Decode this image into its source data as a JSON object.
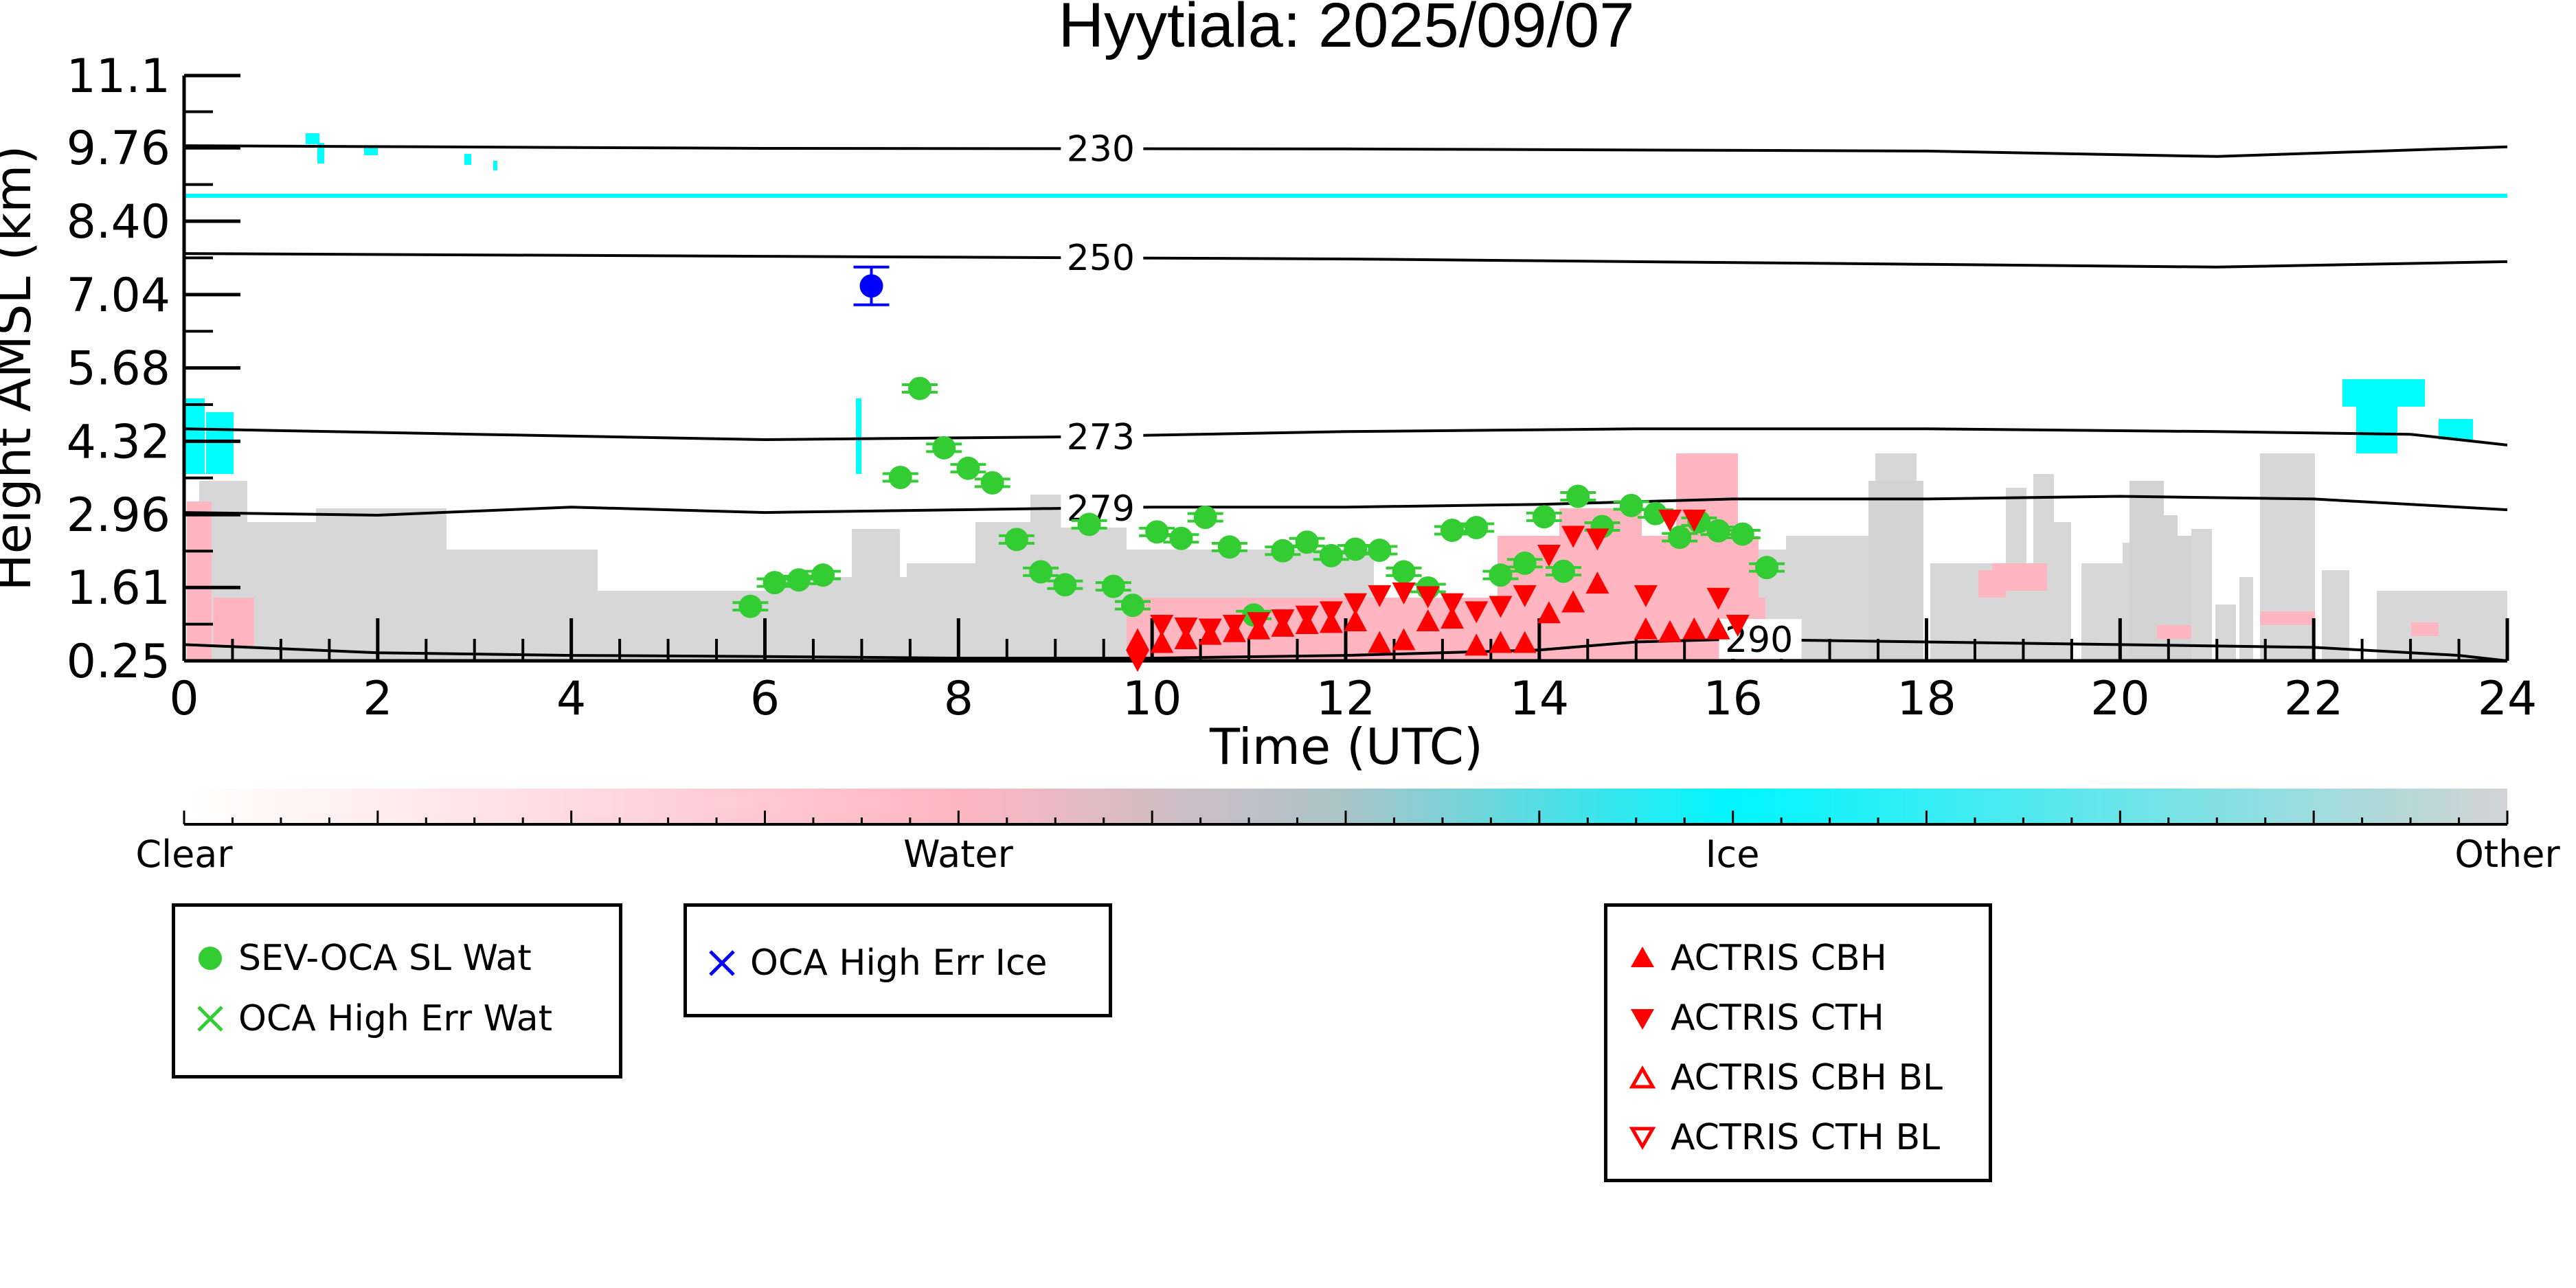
{
  "chart_data": {
    "type": "scatter",
    "title": "Hyytiala: 2025/09/07",
    "xlabel": "Time (UTC)",
    "ylabel": "Height AMSL (km)",
    "xlim": [
      0,
      24
    ],
    "ylim": [
      0.25,
      11.1
    ],
    "x_ticks": [
      "0",
      "2",
      "4",
      "6",
      "8",
      "10",
      "12",
      "14",
      "16",
      "18",
      "20",
      "22",
      "24"
    ],
    "y_ticks": [
      "0.25",
      "1.61",
      "2.96",
      "4.32",
      "5.68",
      "7.04",
      "8.40",
      "9.76",
      "11.1"
    ],
    "colorbar": {
      "labels": [
        "Clear",
        "Water",
        "Ice",
        "Other"
      ],
      "colors": [
        "#ffffff",
        "#ffb6c1",
        "#00ffff",
        "#d3d3d3"
      ]
    },
    "temperature_contours": [
      {
        "label": "230",
        "x": [
          0,
          6,
          12,
          18,
          21,
          24
        ],
        "y": [
          9.8,
          9.75,
          9.74,
          9.7,
          9.6,
          9.78
        ]
      },
      {
        "label": "250",
        "x": [
          0,
          6,
          12,
          18,
          21,
          24
        ],
        "y": [
          7.8,
          7.75,
          7.7,
          7.6,
          7.55,
          7.65
        ]
      },
      {
        "label": "273",
        "x": [
          0,
          3,
          6,
          9,
          12,
          15,
          18,
          21,
          23,
          24
        ],
        "y": [
          4.55,
          4.45,
          4.35,
          4.4,
          4.5,
          4.55,
          4.55,
          4.5,
          4.45,
          4.25
        ]
      },
      {
        "label": "279",
        "x": [
          0,
          2,
          4,
          6,
          8,
          10,
          12,
          14,
          16,
          18,
          20,
          22,
          24
        ],
        "y": [
          3.0,
          2.95,
          3.1,
          3.0,
          3.05,
          3.1,
          3.1,
          3.15,
          3.25,
          3.25,
          3.3,
          3.25,
          3.05
        ]
      },
      {
        "label": "290",
        "x": [
          0,
          2,
          4,
          6,
          8,
          10,
          12,
          14,
          15,
          16,
          18,
          20,
          22,
          23.5,
          24
        ],
        "y": [
          0.55,
          0.4,
          0.35,
          0.33,
          0.3,
          0.3,
          0.35,
          0.45,
          0.6,
          0.65,
          0.6,
          0.55,
          0.5,
          0.35,
          0.25
        ]
      }
    ],
    "series": [
      {
        "name": "SEV-OCA SL Wat",
        "marker": "filled-circle",
        "color": "#33cc33",
        "x": [
          5.85,
          6.1,
          6.35,
          6.6,
          7.4,
          7.6,
          7.85,
          8.1,
          8.35,
          8.6,
          8.85,
          9.1,
          9.35,
          9.6,
          9.8,
          10.05,
          10.3,
          10.55,
          10.8,
          11.05,
          11.35,
          11.6,
          11.85,
          12.1,
          12.35,
          12.6,
          12.85,
          13.1,
          13.35,
          13.6,
          13.85,
          14.05,
          14.25,
          14.4,
          14.65,
          14.95,
          15.2,
          15.45,
          15.65,
          15.85,
          16.1,
          16.35
        ],
        "y": [
          1.26,
          1.7,
          1.75,
          1.84,
          3.65,
          5.3,
          4.2,
          3.82,
          3.55,
          2.5,
          1.9,
          1.66,
          2.78,
          1.63,
          1.28,
          2.64,
          2.52,
          2.91,
          2.36,
          1.1,
          2.29,
          2.45,
          2.2,
          2.32,
          2.3,
          1.9,
          1.6,
          2.67,
          2.72,
          1.84,
          2.06,
          2.92,
          1.91,
          3.3,
          2.74,
          3.13,
          2.98,
          2.54,
          2.83,
          2.66,
          2.6,
          1.98
        ]
      },
      {
        "name": "OCA High Err Wat",
        "marker": "x",
        "color": "#33cc33",
        "x": [],
        "y": []
      },
      {
        "name": "OCA High Err Ice",
        "marker": "x",
        "color": "#0000ff",
        "x": [
          7.1
        ],
        "y": [
          7.2
        ]
      },
      {
        "name": "ACTRIS CBH",
        "marker": "triangle-up",
        "color": "#ff0000",
        "x": [
          9.85,
          10.1,
          10.35,
          10.6,
          10.85,
          11.1,
          11.35,
          11.6,
          11.85,
          12.1,
          12.35,
          12.6,
          12.85,
          13.1,
          13.35,
          13.6,
          13.85,
          14.1,
          14.35,
          14.6,
          15.1,
          15.35,
          15.6,
          15.85
        ],
        "y": [
          0.6,
          0.55,
          0.62,
          0.7,
          0.75,
          0.8,
          0.85,
          0.9,
          0.92,
          0.95,
          0.55,
          0.6,
          0.95,
          1.0,
          0.5,
          0.55,
          0.55,
          1.1,
          1.3,
          1.65,
          0.8,
          0.75,
          0.8,
          0.8
        ]
      },
      {
        "name": "ACTRIS CTH",
        "marker": "triangle-down",
        "color": "#ff0000",
        "x": [
          9.85,
          10.1,
          10.35,
          10.6,
          10.85,
          11.1,
          11.35,
          11.6,
          11.85,
          12.1,
          12.35,
          12.6,
          12.85,
          13.1,
          13.35,
          13.6,
          13.85,
          14.1,
          14.35,
          14.6,
          15.1,
          15.35,
          15.6,
          15.85,
          16.05
        ],
        "y": [
          0.3,
          0.95,
          0.9,
          0.88,
          0.95,
          1.0,
          1.05,
          1.12,
          1.2,
          1.35,
          1.5,
          1.55,
          1.48,
          1.35,
          1.2,
          1.3,
          1.5,
          2.25,
          2.6,
          2.55,
          1.5,
          2.9,
          2.9,
          1.45,
          0.95
        ]
      },
      {
        "name": "ACTRIS CBH BL",
        "marker": "triangle-up-open",
        "color": "#ff0000",
        "x": [],
        "y": []
      },
      {
        "name": "ACTRIS CTH BL",
        "marker": "triangle-down-open",
        "color": "#ff0000",
        "x": [],
        "y": []
      }
    ],
    "error_bars": {
      "SEV-OCA SL Wat": 0.07,
      "OCA High Err Ice": 0.35
    },
    "legend_placement": "below"
  },
  "legends": {
    "box1": [
      "SEV-OCA SL Wat",
      "OCA High Err Wat"
    ],
    "box2": [
      "OCA High Err Ice"
    ],
    "box3": [
      "ACTRIS CBH",
      "ACTRIS CTH",
      "ACTRIS CBH BL",
      "ACTRIS CTH BL"
    ]
  }
}
